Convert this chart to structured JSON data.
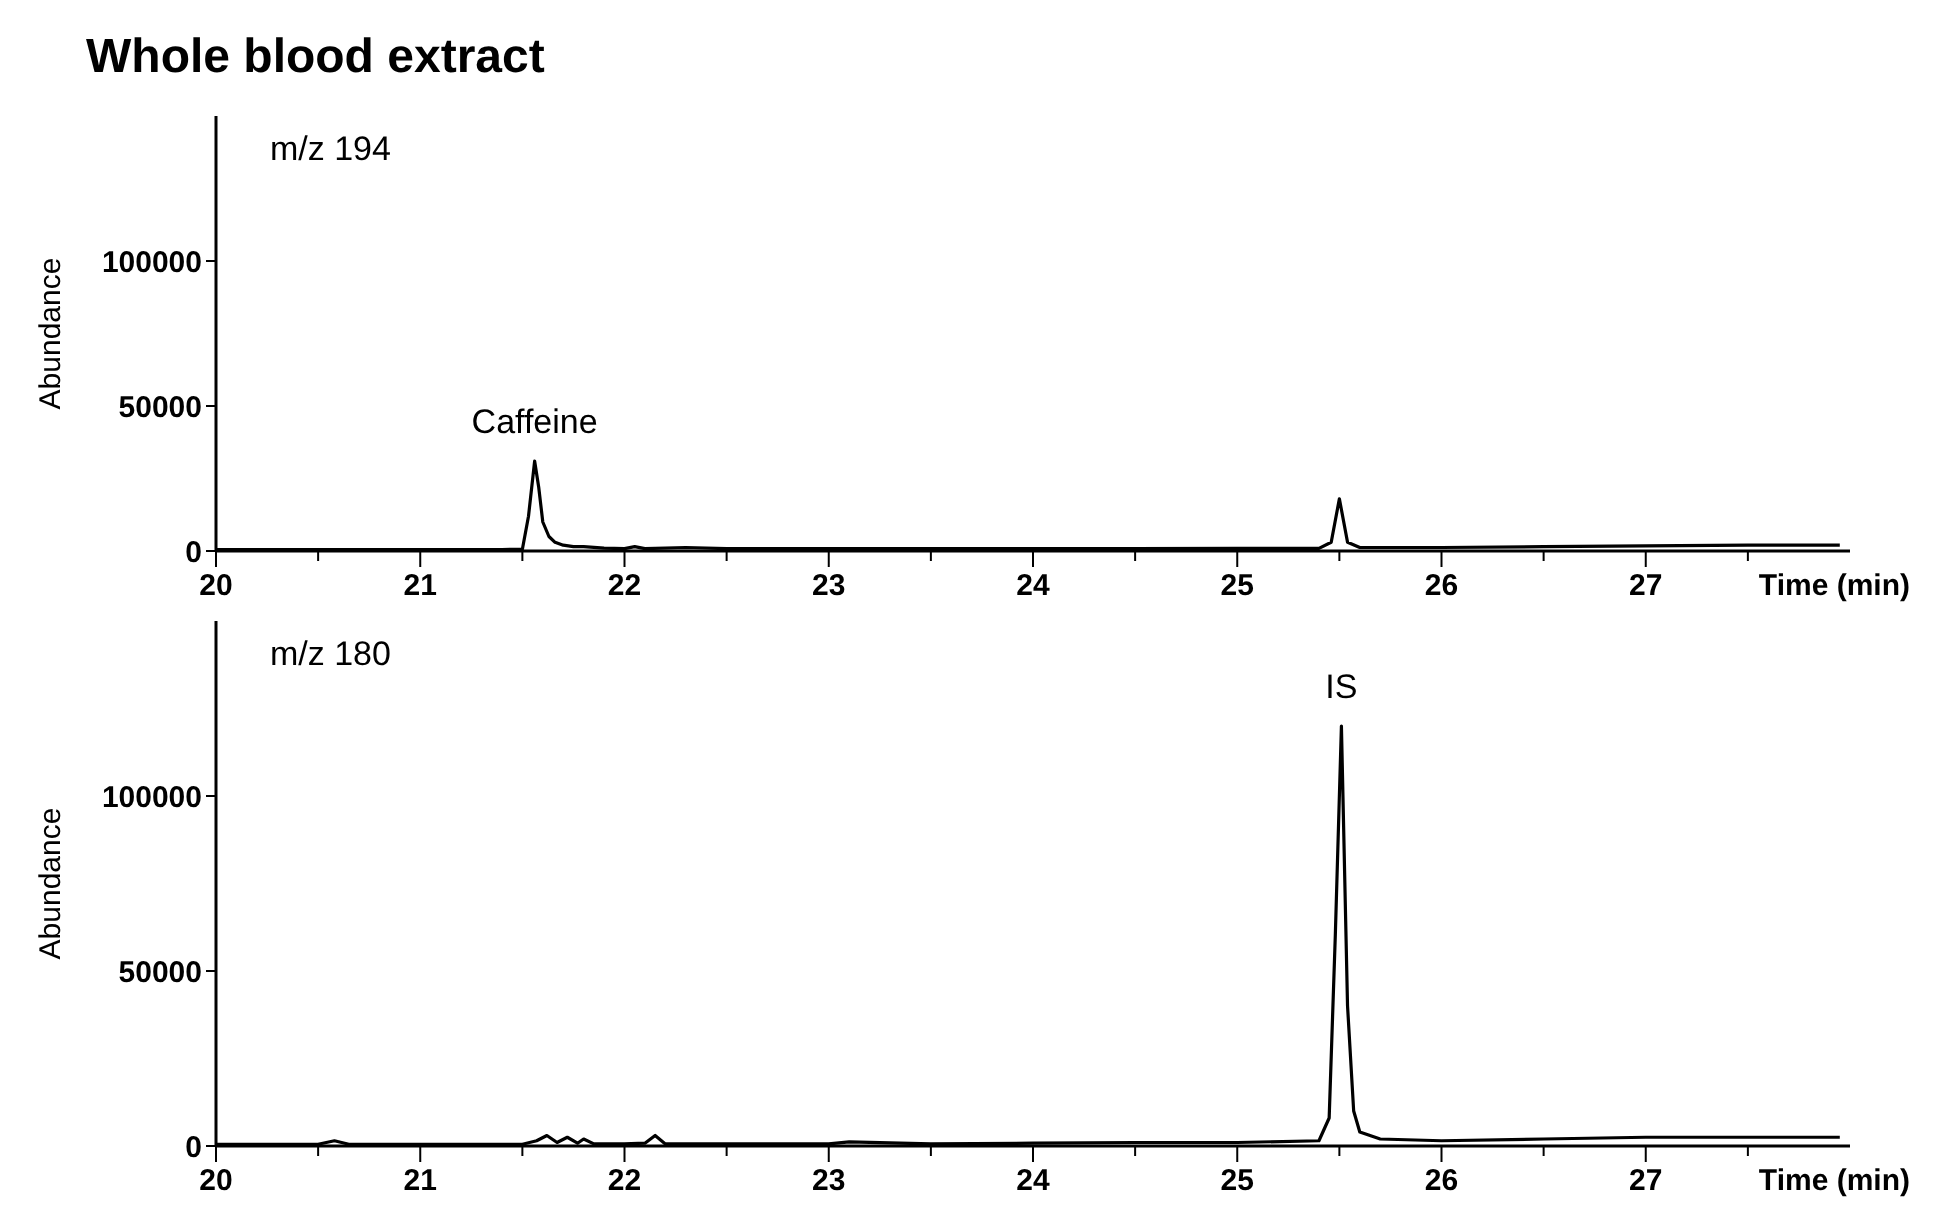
{
  "chart_data": [
    {
      "type": "line",
      "title": "Whole blood extract",
      "xlabel": "Time (min)",
      "ylabel": "Abundance",
      "annotations": [
        "m/z 194",
        {
          "text": "Caffeine",
          "x": 21.56,
          "y": 31000
        }
      ],
      "xlim": [
        20,
        28
      ],
      "xticks": [
        20,
        {
          "value": 20.5,
          "label": null
        },
        21,
        {
          "value": 21.5,
          "label": null
        },
        22,
        {
          "value": 22.5,
          "label": null
        },
        23,
        {
          "value": 23.5,
          "label": null
        },
        24,
        {
          "value": 24.5,
          "label": null
        },
        25,
        {
          "value": 25.5,
          "label": null
        },
        26,
        {
          "value": 26.5,
          "label": null
        },
        27,
        {
          "value": 27.5,
          "label": null
        }
      ],
      "ylim": [
        0,
        150000
      ],
      "yticks": [
        0,
        50000,
        100000
      ],
      "grid": false,
      "marker": "none",
      "line_style": "solid",
      "series": [
        {
          "color": "#000000",
          "x": [
            20,
            20.5,
            21,
            21.4,
            21.5,
            21.53,
            21.56,
            21.58,
            21.6,
            21.63,
            21.66,
            21.7,
            21.75,
            21.8,
            21.9,
            22,
            22.05,
            22.1,
            22.3,
            22.5,
            23,
            23.5,
            24,
            24.5,
            25,
            25.4,
            25.46,
            25.5,
            25.54,
            25.6,
            26,
            26.5,
            27,
            27.5,
            27.95
          ],
          "values": [
            500,
            500,
            500,
            500,
            600,
            12000,
            31000,
            22000,
            10000,
            5000,
            3000,
            2000,
            1500,
            1500,
            1000,
            800,
            1500,
            800,
            1200,
            800,
            800,
            800,
            800,
            800,
            900,
            900,
            3000,
            18000,
            3000,
            1200,
            1200,
            1500,
            1800,
            2000,
            2000
          ]
        }
      ]
    },
    {
      "type": "line",
      "xlabel": "Time (min)",
      "ylabel": "Abundance",
      "annotations": [
        "m/z 180",
        {
          "text": "IS",
          "x": 25.51,
          "y": 120000
        }
      ],
      "xlim": [
        20,
        28
      ],
      "xticks": [
        20,
        {
          "value": 20.5,
          "label": null
        },
        21,
        {
          "value": 21.5,
          "label": null
        },
        22,
        {
          "value": 22.5,
          "label": null
        },
        23,
        {
          "value": 23.5,
          "label": null
        },
        24,
        {
          "value": 24.5,
          "label": null
        },
        25,
        {
          "value": 25.5,
          "label": null
        },
        26,
        {
          "value": 26.5,
          "label": null
        },
        27,
        {
          "value": 27.5,
          "label": null
        }
      ],
      "ylim": [
        0,
        150000
      ],
      "yticks": [
        0,
        50000,
        100000
      ],
      "grid": false,
      "marker": "none",
      "line_style": "solid",
      "series": [
        {
          "color": "#000000",
          "x": [
            20,
            20.5,
            20.58,
            20.65,
            21,
            21.5,
            21.57,
            21.62,
            21.67,
            21.72,
            21.77,
            21.8,
            21.85,
            22,
            22.1,
            22.15,
            22.2,
            22.5,
            23,
            23.1,
            23.5,
            24,
            24.5,
            25,
            25.4,
            25.45,
            25.48,
            25.51,
            25.54,
            25.57,
            25.6,
            25.7,
            26,
            26.5,
            27,
            27.5,
            27.95
          ],
          "values": [
            500,
            500,
            1500,
            500,
            500,
            500,
            1500,
            3000,
            1000,
            2500,
            800,
            2000,
            600,
            600,
            800,
            3000,
            600,
            600,
            600,
            1200,
            600,
            800,
            1000,
            1000,
            1500,
            8000,
            60000,
            120000,
            40000,
            10000,
            4000,
            2000,
            1500,
            2000,
            2500,
            2500,
            2500
          ]
        }
      ]
    }
  ]
}
